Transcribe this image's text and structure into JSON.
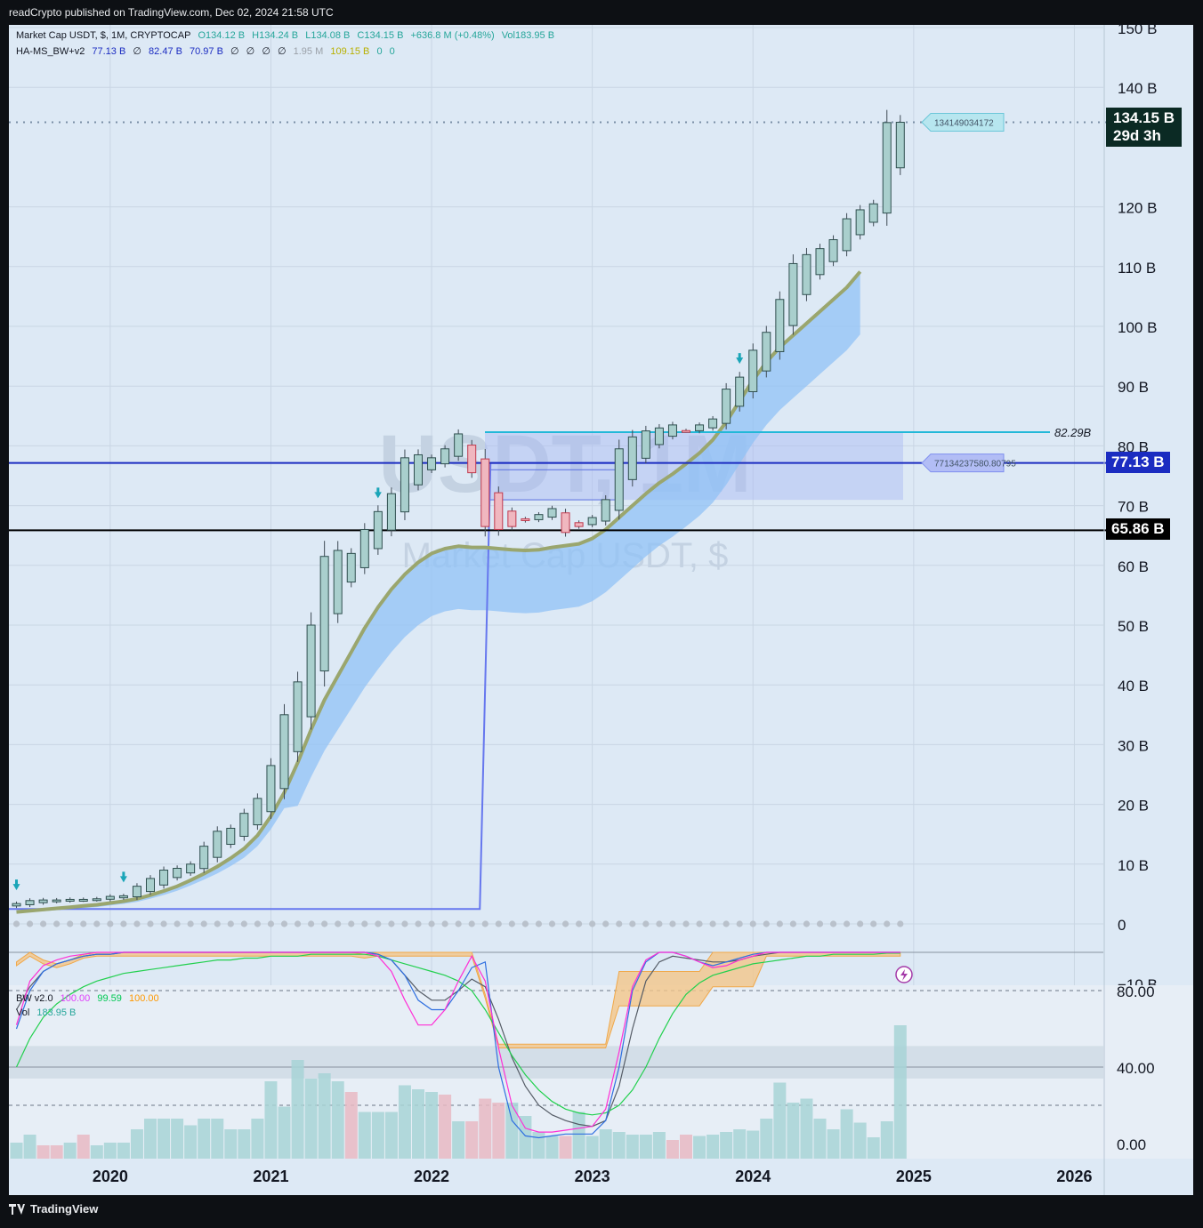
{
  "header": {
    "published": "readCrypto published on TradingView.com, Dec 02, 2024 21:58 UTC"
  },
  "main_legend": {
    "symbol": "Market Cap USDT, $, 1M, CRYPTOCAP",
    "open": "O134.12 B",
    "high": "H134.24 B",
    "low": "L134.08 B",
    "close": "C134.15 B",
    "change": "+636.8 M (+0.48%)",
    "vol": "Vol183.95 B"
  },
  "indicator_legend": {
    "name": "HA-MS_BW+v2",
    "values": [
      "77.13 B",
      "∅",
      "82.47 B",
      "70.97 B",
      "∅",
      "∅",
      "∅",
      "∅",
      "1.95 M",
      "109.15 B",
      "0",
      "0"
    ]
  },
  "watermark": {
    "line1": "USDT, 1M",
    "line2": "Market Cap USDT, $"
  },
  "price_tags": {
    "last_price": "134.15 B",
    "countdown": "29d 3h",
    "level_blue": "77.13 B",
    "level_black": "65.86 B",
    "level_cyan_label": "82.29B",
    "callout_top": "134149034172",
    "callout_mid": "77134237580.80795"
  },
  "colors": {
    "chart_bg": "#dde9f5",
    "candle_up": "#a9cfcd",
    "candle_down": "#f0b7bf",
    "cloud": "#90c2f5",
    "ma_line": "#9aa66e",
    "blue_level": "#1b2cc1",
    "cyan_level": "#22b8d8",
    "step_line": "#6677ee",
    "box_fill": "#a8b8f5"
  },
  "sub_legend": {
    "name": "BW v2.0",
    "v1": "100.00",
    "v2": "99.59",
    "v3": "100.00",
    "vol": "Vol",
    "vol_val": "183.95 B"
  },
  "footer": {
    "brand": "TradingView"
  },
  "chart_data": [
    {
      "type": "candlestick",
      "title": "Market Cap USDT, $, 1M, CRYPTOCAP",
      "y_ticks": [
        "150 B",
        "140 B",
        "120 B",
        "110 B",
        "100 B",
        "90 B",
        "80 B",
        "70 B",
        "60 B",
        "50 B",
        "40 B",
        "30 B",
        "20 B",
        "10 B",
        "0",
        "−10 B"
      ],
      "x_ticks": [
        "2020",
        "2021",
        "2022",
        "2023",
        "2024",
        "2025",
        "2026"
      ],
      "ylim": [
        -10,
        150
      ],
      "series": [
        {
          "name": "Market Cap USDT (monthly close, B)",
          "x": [
            "2019-06",
            "2019-07",
            "2019-08",
            "2019-09",
            "2019-10",
            "2019-11",
            "2019-12",
            "2020-01",
            "2020-02",
            "2020-03",
            "2020-04",
            "2020-05",
            "2020-06",
            "2020-07",
            "2020-08",
            "2020-09",
            "2020-10",
            "2020-11",
            "2020-12",
            "2021-01",
            "2021-02",
            "2021-03",
            "2021-04",
            "2021-05",
            "2021-06",
            "2021-07",
            "2021-08",
            "2021-09",
            "2021-10",
            "2021-11",
            "2021-12",
            "2022-01",
            "2022-02",
            "2022-03",
            "2022-04",
            "2022-05",
            "2022-06",
            "2022-07",
            "2022-08",
            "2022-09",
            "2022-10",
            "2022-11",
            "2022-12",
            "2023-01",
            "2023-02",
            "2023-03",
            "2023-04",
            "2023-05",
            "2023-06",
            "2023-07",
            "2023-08",
            "2023-09",
            "2023-10",
            "2023-11",
            "2023-12",
            "2024-01",
            "2024-02",
            "2024-03",
            "2024-04",
            "2024-05",
            "2024-06",
            "2024-07",
            "2024-08",
            "2024-09",
            "2024-10",
            "2024-11",
            "2024-12"
          ],
          "values": [
            3.4,
            3.9,
            4.0,
            4.0,
            4.1,
            4.1,
            4.2,
            4.6,
            4.7,
            6.3,
            7.6,
            9.0,
            9.3,
            10.0,
            13.0,
            15.5,
            16.0,
            18.5,
            21.0,
            26.5,
            35.0,
            40.5,
            50.0,
            61.5,
            62.5,
            62.0,
            66.0,
            69.0,
            72.0,
            78.0,
            78.5,
            78.0,
            79.5,
            82.0,
            75.5,
            66.5,
            66.0,
            66.5,
            67.5,
            68.5,
            69.5,
            65.5,
            66.5,
            68.0,
            71.0,
            79.5,
            81.5,
            82.5,
            83.0,
            83.5,
            82.5,
            83.5,
            84.5,
            89.5,
            91.5,
            96.0,
            99.0,
            104.5,
            110.5,
            112.0,
            113.0,
            114.5,
            118.0,
            119.5,
            120.5,
            134.1,
            134.15
          ]
        },
        {
          "name": "Moving average (B)",
          "x_from": "2019-06",
          "values": [
            2,
            2.2,
            2.4,
            2.6,
            2.8,
            3.0,
            3.2,
            3.5,
            3.8,
            4.2,
            4.8,
            5.5,
            6.3,
            7.3,
            8.4,
            9.6,
            11.0,
            12.6,
            14.8,
            18.0,
            22.0,
            27.0,
            32.5,
            37.5,
            41.5,
            45.5,
            49.5,
            53.0,
            56.0,
            58.5,
            60.5,
            62.0,
            62.8,
            63.2,
            63.0,
            63.0,
            62.8,
            62.6,
            62.5,
            62.6,
            63.0,
            63.3,
            63.6,
            64.5,
            66.0,
            68.0,
            70.0,
            72.0,
            73.8,
            75.3,
            77.0,
            78.8,
            81.0,
            84.0,
            87.5,
            91.0,
            94.0,
            96.5,
            98.5,
            100.5,
            102.5,
            104.5,
            106.5,
            109.15
          ]
        },
        {
          "name": "Levels (B)",
          "values": [
            82.29,
            77.13,
            65.86
          ]
        }
      ]
    },
    {
      "type": "line",
      "title": "BW v2.0",
      "y_ticks": [
        "80.00",
        "40.00",
        "0.00"
      ],
      "series": [
        {
          "name": "BW v2.0",
          "last": 100.0
        },
        {
          "name": "BW v2.0",
          "last": 99.59
        },
        {
          "name": "BW v2.0",
          "last": 100.0
        },
        {
          "name": "Vol",
          "last": "183.95 B"
        }
      ]
    }
  ]
}
